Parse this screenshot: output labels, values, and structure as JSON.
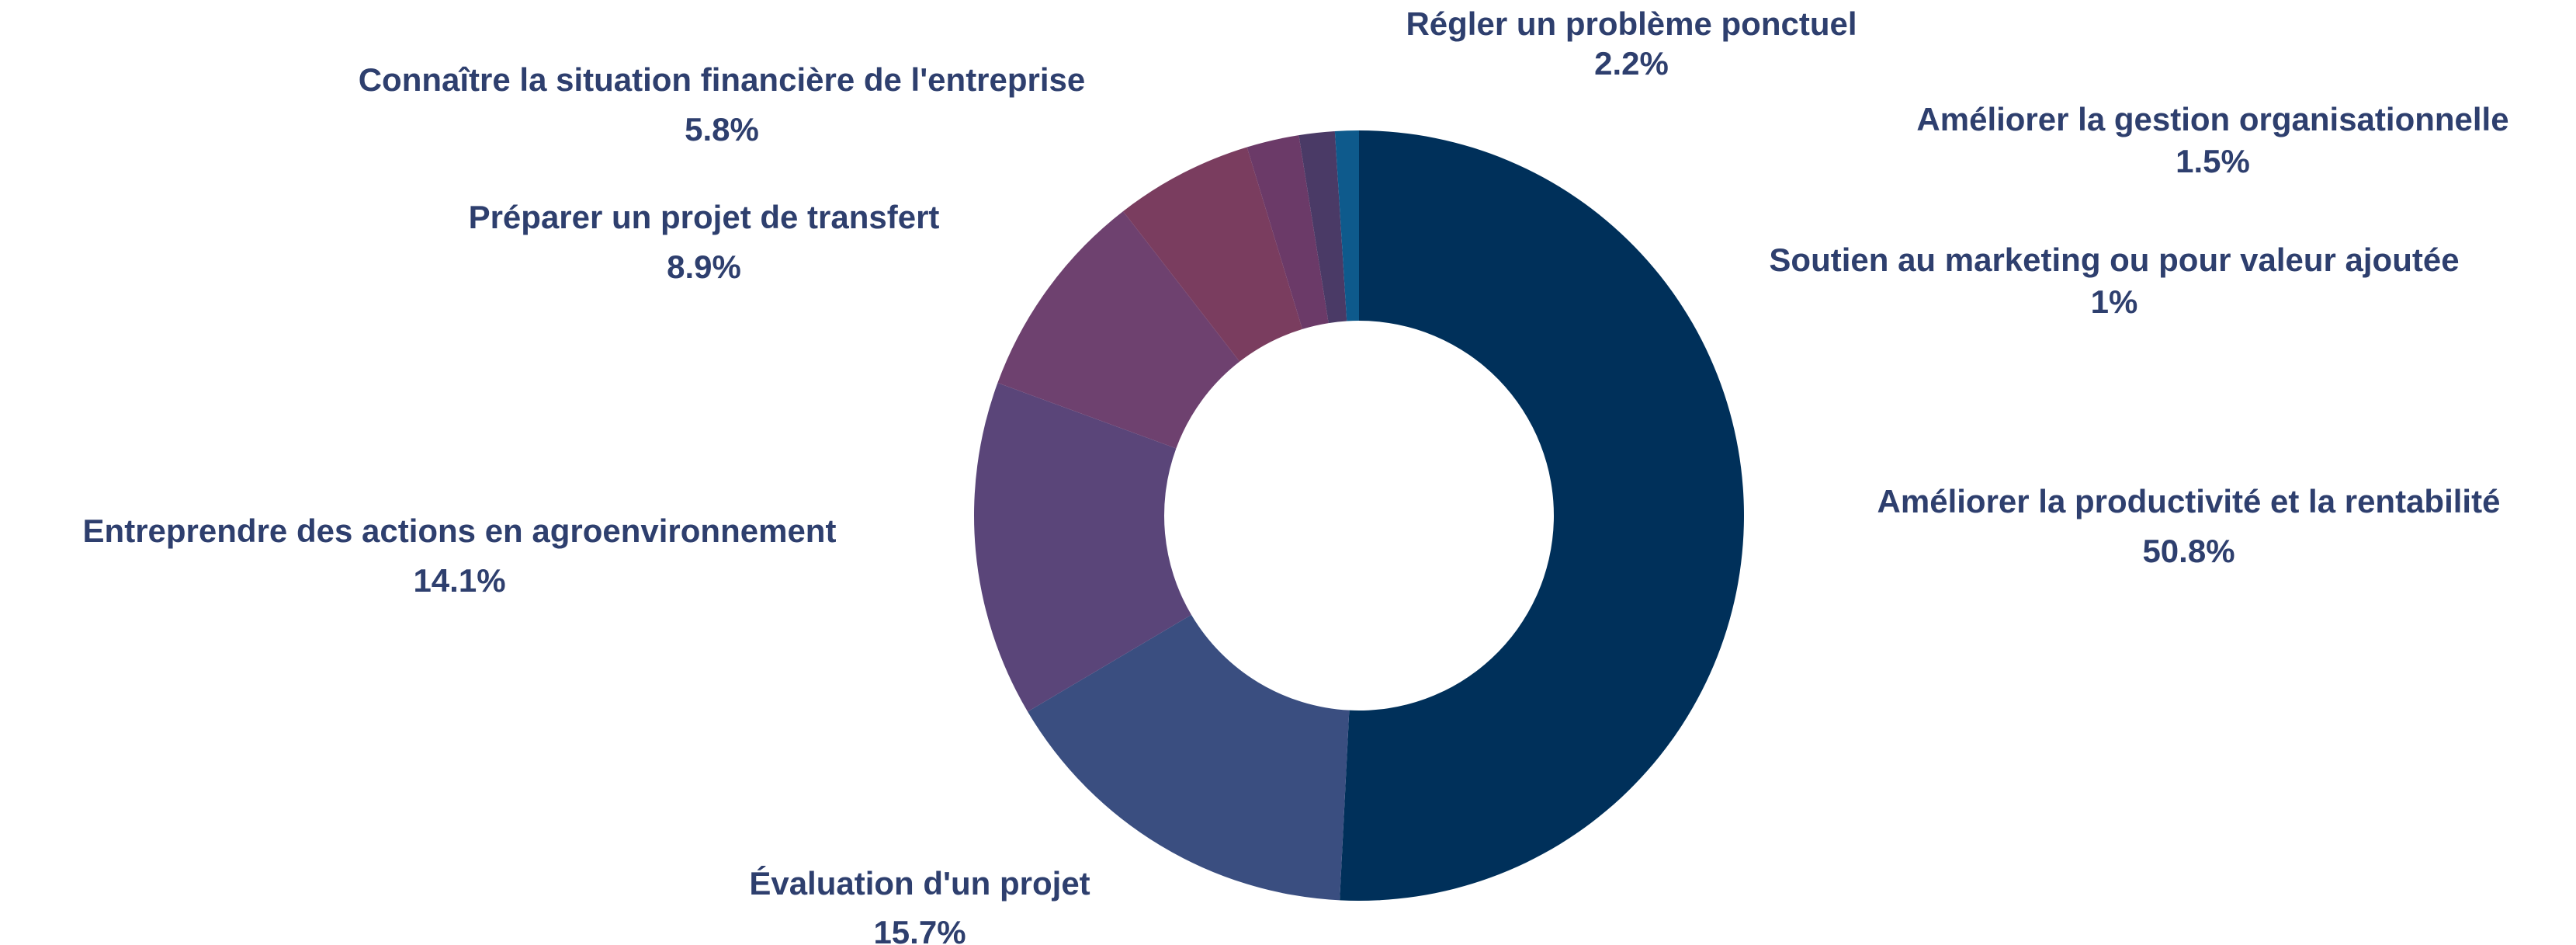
{
  "chart_data": {
    "type": "donut",
    "categories": [
      "Améliorer la productivité et la rentabilité",
      "Évaluation d'un projet",
      "Entreprendre des actions en agroenvironnement",
      "Préparer un projet de transfert",
      "Connaître la situation financière de l'entreprise",
      "Régler un problème ponctuel",
      "Améliorer la gestion organisationnelle",
      "Soutien au marketing ou pour valeur ajoutée"
    ],
    "values": [
      50.8,
      15.7,
      14.1,
      8.9,
      5.8,
      2.2,
      1.5,
      1
    ],
    "value_labels": [
      "50.8%",
      "15.7%",
      "14.1%",
      "8.9%",
      "5.8%",
      "2.2%",
      "1.5%",
      "1%"
    ],
    "colors": [
      "#00305a",
      "#3a4e80",
      "#5a4579",
      "#6e416f",
      "#7a3d5f",
      "#6b3a68",
      "#4a3a66",
      "#0e5a8c"
    ]
  }
}
